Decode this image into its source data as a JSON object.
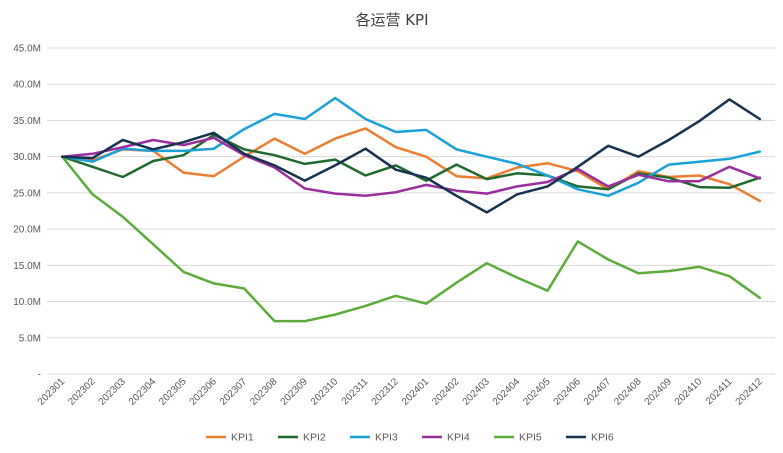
{
  "chart_data": {
    "type": "line",
    "title": "各运营 KPI",
    "xlabel": "",
    "ylabel": "",
    "grid": true,
    "legend_position": "bottom",
    "ylim": [
      0,
      45
    ],
    "y_ticks": [
      0,
      5,
      10,
      15,
      20,
      25,
      30,
      35,
      40,
      45
    ],
    "y_tick_labels": [
      "-",
      "5.0M",
      "10.0M",
      "15.0M",
      "20.0M",
      "25.0M",
      "30.0M",
      "35.0M",
      "40.0M",
      "45.0M"
    ],
    "y_unit": "M",
    "categories": [
      "202301",
      "202302",
      "202303",
      "202304",
      "202305",
      "202306",
      "202307",
      "202308",
      "202309",
      "202310",
      "202311",
      "202312",
      "202401",
      "202402",
      "202403",
      "202404",
      "202405",
      "202406",
      "202407",
      "202408",
      "202409",
      "202410",
      "202411",
      "202412"
    ],
    "series": [
      {
        "name": "KPI1",
        "color": "#ED7D31",
        "values": [
          30.0,
          29.5,
          31.0,
          30.8,
          27.8,
          27.3,
          30.0,
          32.5,
          30.4,
          32.5,
          33.9,
          31.3,
          30.0,
          27.3,
          27.0,
          28.5,
          29.1,
          28.0,
          25.5,
          28.0,
          27.2,
          27.4,
          26.2,
          23.9
        ]
      },
      {
        "name": "KPI2",
        "color": "#1F6B2E",
        "values": [
          30.0,
          28.6,
          27.2,
          29.4,
          30.2,
          33.0,
          31.0,
          30.2,
          29.0,
          29.6,
          27.4,
          28.8,
          26.7,
          28.9,
          26.9,
          27.7,
          27.4,
          25.9,
          25.5,
          27.7,
          27.1,
          25.8,
          25.7,
          27.1
        ]
      },
      {
        "name": "KPI3",
        "color": "#1BA1D9",
        "values": [
          30.0,
          29.3,
          31.1,
          30.8,
          30.8,
          31.1,
          33.8,
          35.9,
          35.2,
          38.1,
          35.2,
          33.4,
          33.7,
          31.0,
          30.0,
          29.0,
          27.4,
          25.5,
          24.6,
          26.4,
          28.9,
          29.3,
          29.7,
          30.7
        ]
      },
      {
        "name": "KPI4",
        "color": "#9A2E9E",
        "values": [
          30.0,
          30.4,
          31.3,
          32.3,
          31.6,
          32.6,
          30.2,
          28.5,
          25.6,
          24.9,
          24.6,
          25.1,
          26.1,
          25.3,
          24.9,
          25.9,
          26.5,
          28.3,
          25.9,
          27.5,
          26.6,
          26.6,
          28.6,
          27.0
        ]
      },
      {
        "name": "KPI5",
        "color": "#5CAB3B",
        "values": [
          30.0,
          24.8,
          21.7,
          17.9,
          14.1,
          12.5,
          11.8,
          7.3,
          7.3,
          8.2,
          9.4,
          10.8,
          9.7,
          12.6,
          15.3,
          13.3,
          11.5,
          18.3,
          15.8,
          13.9,
          14.2,
          14.8,
          13.5,
          10.5
        ]
      },
      {
        "name": "KPI6",
        "color": "#16324F",
        "values": [
          30.0,
          29.8,
          32.3,
          31.0,
          32.0,
          33.3,
          30.4,
          28.8,
          26.7,
          28.8,
          31.1,
          28.2,
          27.1,
          24.6,
          22.3,
          24.8,
          25.9,
          28.6,
          31.5,
          30.0,
          32.3,
          34.9,
          37.9,
          35.2
        ]
      }
    ]
  }
}
